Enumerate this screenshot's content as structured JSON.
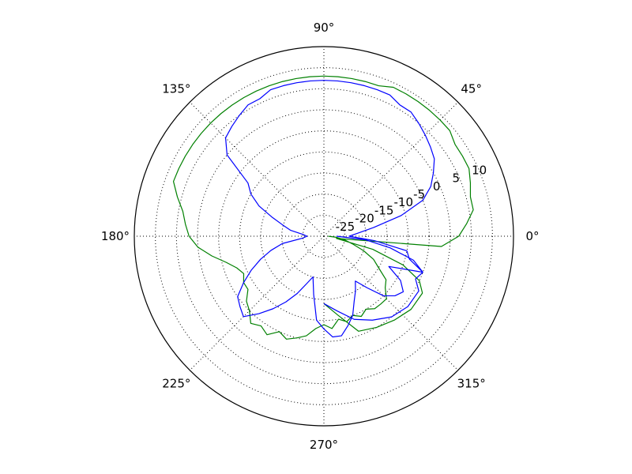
{
  "chart_data": {
    "type": "polar-line",
    "title": "",
    "grid": true,
    "angle_ticks": [
      {
        "deg": 0,
        "label": "0°"
      },
      {
        "deg": 45,
        "label": "45°"
      },
      {
        "deg": 90,
        "label": "90°"
      },
      {
        "deg": 135,
        "label": "135°"
      },
      {
        "deg": 180,
        "label": "180°"
      },
      {
        "deg": 225,
        "label": "225°"
      },
      {
        "deg": 270,
        "label": "270°"
      },
      {
        "deg": 315,
        "label": "315°"
      }
    ],
    "radial_ticks": [
      {
        "value": -25,
        "label": "-25"
      },
      {
        "value": -20,
        "label": "-20"
      },
      {
        "value": -15,
        "label": "-15"
      },
      {
        "value": -10,
        "label": "-10"
      },
      {
        "value": -5,
        "label": "-5"
      },
      {
        "value": 0,
        "label": "0"
      },
      {
        "value": 5,
        "label": "5"
      },
      {
        "value": 10,
        "label": "10"
      }
    ],
    "radial_range": [
      -30,
      15
    ],
    "series": [
      {
        "color": "#008000",
        "points": [
          [
            -90,
            -14
          ],
          [
            -80,
            -11
          ],
          [
            -70,
            -6
          ],
          [
            -60,
            -5
          ],
          [
            -50,
            -4
          ],
          [
            -40,
            -3
          ],
          [
            -30,
            -3
          ],
          [
            -25,
            -5
          ],
          [
            -20,
            -10
          ],
          [
            -15,
            -18
          ],
          [
            -10,
            -27
          ],
          [
            -5,
            -2
          ],
          [
            0,
            2
          ],
          [
            5,
            4
          ],
          [
            10,
            6
          ],
          [
            15,
            6
          ],
          [
            20,
            7
          ],
          [
            25,
            8
          ],
          [
            30,
            8
          ],
          [
            35,
            8
          ],
          [
            40,
            9
          ],
          [
            45,
            9
          ],
          [
            50,
            9
          ],
          [
            55,
            9
          ],
          [
            60,
            9
          ],
          [
            65,
            9
          ],
          [
            70,
            8
          ],
          [
            75,
            8
          ],
          [
            80,
            8
          ],
          [
            85,
            8
          ],
          [
            90,
            8
          ],
          [
            95,
            8
          ],
          [
            100,
            8
          ],
          [
            105,
            8
          ],
          [
            110,
            8
          ],
          [
            115,
            8
          ],
          [
            120,
            8
          ],
          [
            125,
            8
          ],
          [
            130,
            8
          ],
          [
            135,
            8
          ],
          [
            140,
            8
          ],
          [
            145,
            8
          ],
          [
            150,
            8
          ],
          [
            155,
            8
          ],
          [
            160,
            8
          ],
          [
            165,
            6
          ],
          [
            170,
            4
          ],
          [
            175,
            3
          ],
          [
            180,
            2
          ],
          [
            185,
            0
          ],
          [
            190,
            -3
          ],
          [
            195,
            -6
          ],
          [
            200,
            -8
          ],
          [
            205,
            -9
          ],
          [
            210,
            -8
          ],
          [
            215,
            -8
          ],
          [
            220,
            -6
          ],
          [
            225,
            -5
          ],
          [
            230,
            -3
          ],
          [
            235,
            -4
          ],
          [
            240,
            -3
          ],
          [
            245,
            -5
          ],
          [
            250,
            -4
          ],
          [
            255,
            -5
          ],
          [
            260,
            -6
          ],
          [
            265,
            -8
          ],
          [
            270,
            -9
          ],
          [
            275,
            -8
          ],
          [
            280,
            -10
          ],
          [
            285,
            -9
          ],
          [
            290,
            -10
          ],
          [
            295,
            -9
          ],
          [
            300,
            -10
          ],
          [
            305,
            -9
          ],
          [
            310,
            -9
          ],
          [
            315,
            -9
          ],
          [
            320,
            -11
          ],
          [
            325,
            -12
          ],
          [
            330,
            -15
          ],
          [
            335,
            -17
          ],
          [
            340,
            -20
          ],
          [
            345,
            -23
          ],
          [
            350,
            -25
          ],
          [
            355,
            -27
          ],
          [
            360,
            -29
          ]
        ]
      },
      {
        "color": "#0000ff",
        "points": [
          [
            -90,
            -14
          ],
          [
            -80,
            -12
          ],
          [
            -70,
            -9
          ],
          [
            -60,
            -7
          ],
          [
            -50,
            -5
          ],
          [
            -40,
            -4
          ],
          [
            -30,
            -4
          ],
          [
            -25,
            -6
          ],
          [
            -20,
            -5
          ],
          [
            -15,
            -9
          ],
          [
            -10,
            -10
          ],
          [
            -5,
            -18
          ],
          [
            0,
            -24
          ],
          [
            5,
            -22
          ],
          [
            10,
            -18
          ],
          [
            15,
            -11
          ],
          [
            20,
            -5
          ],
          [
            25,
            -2
          ],
          [
            30,
            0
          ],
          [
            35,
            2
          ],
          [
            40,
            3
          ],
          [
            45,
            4
          ],
          [
            50,
            5
          ],
          [
            55,
            6
          ],
          [
            60,
            6
          ],
          [
            65,
            7
          ],
          [
            70,
            7
          ],
          [
            75,
            7
          ],
          [
            80,
            7
          ],
          [
            85,
            7
          ],
          [
            90,
            7
          ],
          [
            95,
            7
          ],
          [
            100,
            7
          ],
          [
            105,
            7
          ],
          [
            110,
            7
          ],
          [
            115,
            6
          ],
          [
            120,
            6
          ],
          [
            125,
            5
          ],
          [
            130,
            4
          ],
          [
            135,
            3
          ],
          [
            140,
            0
          ],
          [
            145,
            -8
          ],
          [
            150,
            -10
          ],
          [
            155,
            -13
          ],
          [
            160,
            -17
          ],
          [
            165,
            -20
          ],
          [
            170,
            -22
          ],
          [
            175,
            -25
          ],
          [
            180,
            -26
          ],
          [
            185,
            -25
          ],
          [
            190,
            -20
          ],
          [
            195,
            -17
          ],
          [
            200,
            -14
          ],
          [
            205,
            -11
          ],
          [
            210,
            -8
          ],
          [
            215,
            -5
          ],
          [
            220,
            -4
          ],
          [
            225,
            -3
          ],
          [
            230,
            -6
          ],
          [
            235,
            -9
          ],
          [
            240,
            -12
          ],
          [
            245,
            -15
          ],
          [
            250,
            -18
          ],
          [
            255,
            -20
          ],
          [
            260,
            -16
          ],
          [
            265,
            -10
          ],
          [
            270,
            -8
          ],
          [
            275,
            -6
          ],
          [
            280,
            -6
          ],
          [
            285,
            -8
          ],
          [
            290,
            -10
          ],
          [
            295,
            -13
          ],
          [
            300,
            -15
          ],
          [
            305,
            -17
          ],
          [
            310,
            -14
          ],
          [
            315,
            -10
          ],
          [
            320,
            -8
          ],
          [
            325,
            -7
          ],
          [
            330,
            -9
          ],
          [
            335,
            -13
          ],
          [
            340,
            -5
          ],
          [
            345,
            -8
          ],
          [
            350,
            -14
          ],
          [
            355,
            -20
          ],
          [
            360,
            -27
          ]
        ]
      }
    ]
  }
}
